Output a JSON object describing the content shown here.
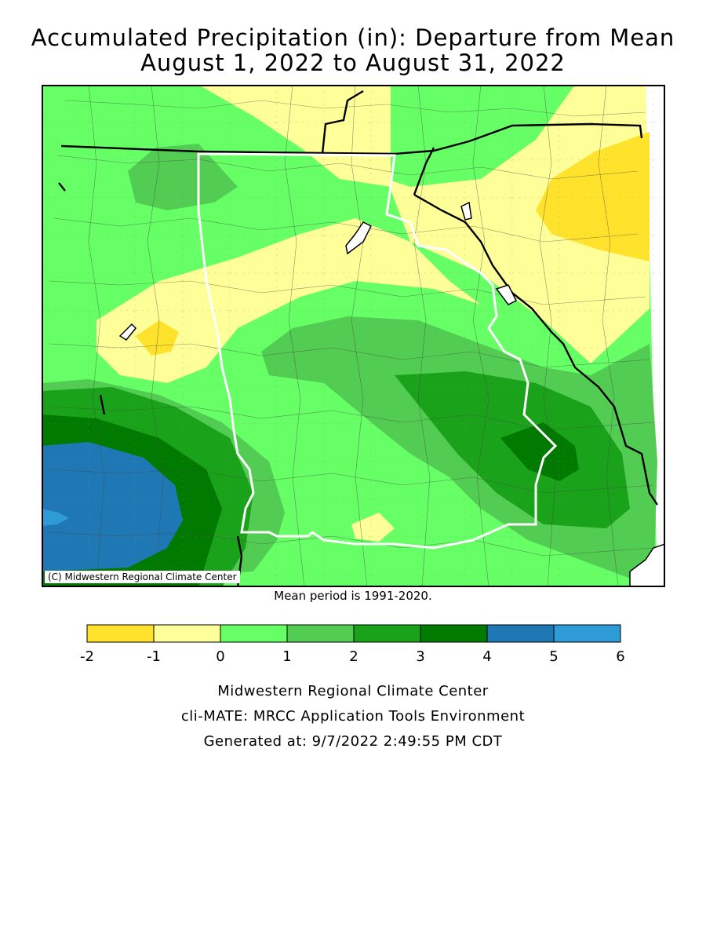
{
  "title": {
    "line1": "Accumulated Precipitation (in): Departure from Mean",
    "line2": "August 1, 2022 to August 31, 2022"
  },
  "map": {
    "copyright": "(C) Midwestern Regional Climate Center",
    "mean_note": "Mean period is 1991-2020."
  },
  "legend": {
    "ticks": [
      "-2",
      "-1",
      "0",
      "1",
      "2",
      "3",
      "4",
      "5",
      "6"
    ],
    "colors": [
      "#ffe22b",
      "#ffff99",
      "#66ff66",
      "#52cc52",
      "#1aa31a",
      "#007a00",
      "#1f78b4",
      "#2e9bd6"
    ]
  },
  "colors": {
    "dry_strong": "#ffe22b",
    "dry": "#ffff99",
    "wet_0_1": "#66ff66",
    "wet_1_2": "#52cc52",
    "wet_2_3": "#1aa31a",
    "wet_3_4": "#007a00",
    "wet_4_5": "#1f78b4",
    "wet_5_6": "#2e9bd6"
  },
  "footer": {
    "line1": "Midwestern Regional Climate Center",
    "line2": "cli-MATE: MRCC Application Tools Environment",
    "line3": "Generated at: 9/7/2022 2:49:55 PM CDT"
  }
}
